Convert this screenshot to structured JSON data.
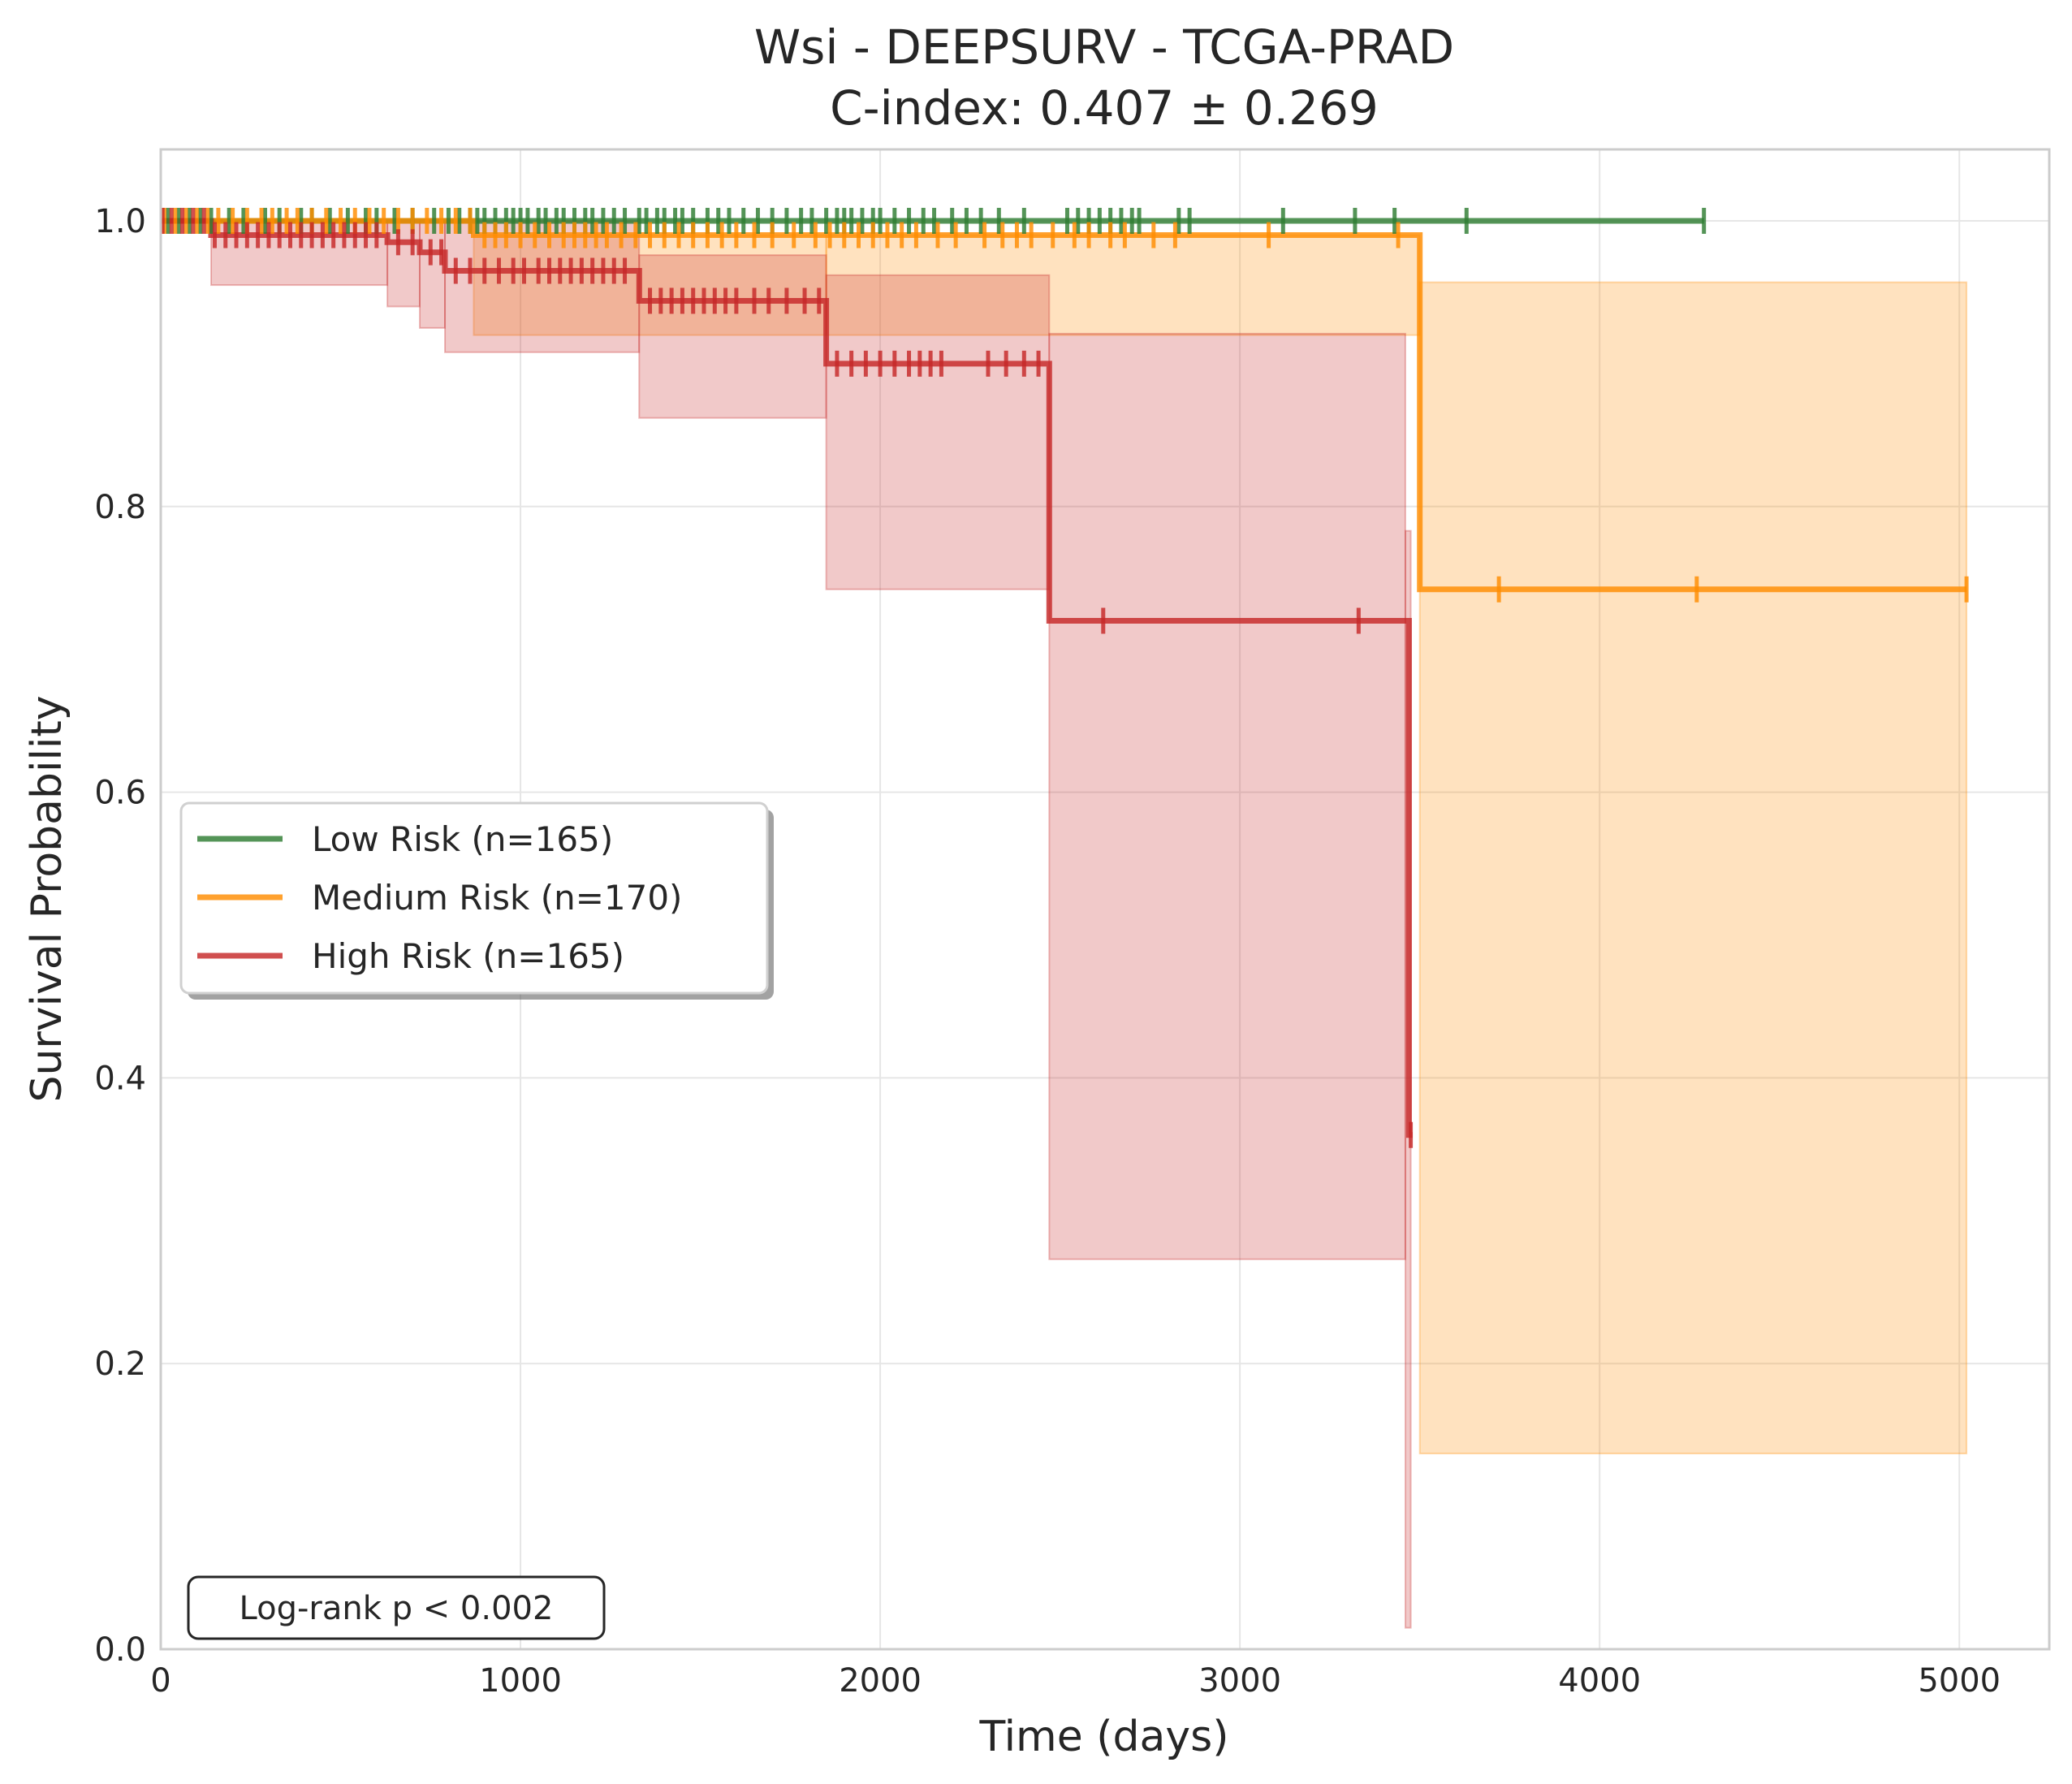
{
  "chart_data": {
    "type": "line",
    "subtype": "kaplan-meier",
    "title": "Wsi - DEEPSURV - TCGA-PRAD",
    "subtitle": "C-index: 0.407 ± 0.269",
    "xlabel": "Time (days)",
    "ylabel": "Survival Probability",
    "xlim": [
      0,
      5250
    ],
    "ylim": [
      0,
      1.05
    ],
    "xticks": [
      0,
      1000,
      2000,
      3000,
      4000,
      5000
    ],
    "yticks": [
      0.0,
      0.2,
      0.4,
      0.6,
      0.8,
      1.0
    ],
    "xtick_labels": [
      "0",
      "1000",
      "2000",
      "3000",
      "4000",
      "5000"
    ],
    "ytick_labels": [
      "0.0",
      "0.2",
      "0.4",
      "0.6",
      "0.8",
      "1.0"
    ],
    "grid": true,
    "legend_position": "center-left",
    "annotation": "Log-rank p < 0.002",
    "series": [
      {
        "name": "Low Risk (n=165)",
        "color": "#2e7d32",
        "steps": [
          [
            0,
            1.0
          ],
          [
            4290,
            1.0
          ]
        ],
        "ci": null,
        "censor_times": [
          20,
          50,
          80,
          110,
          140,
          190,
          230,
          290,
          330,
          390,
          420,
          470,
          520,
          570,
          600,
          650,
          700,
          760,
          800,
          830,
          860,
          880,
          900,
          930,
          960,
          980,
          1000,
          1020,
          1050,
          1070,
          1100,
          1120,
          1150,
          1180,
          1200,
          1230,
          1260,
          1290,
          1330,
          1350,
          1380,
          1400,
          1430,
          1450,
          1480,
          1520,
          1550,
          1580,
          1620,
          1660,
          1700,
          1740,
          1780,
          1810,
          1850,
          1880,
          1900,
          1920,
          1950,
          1980,
          2000,
          2040,
          2080,
          2120,
          2150,
          2200,
          2240,
          2280,
          2330,
          2400,
          2520,
          2550,
          2580,
          2610,
          2640,
          2670,
          2700,
          2720,
          2830,
          2860,
          3120,
          3320,
          3430,
          3630,
          4290
        ]
      },
      {
        "name": "Medium Risk (n=170)",
        "color": "#ff8c00",
        "steps": [
          [
            0,
            1.0
          ],
          [
            870,
            1.0
          ],
          [
            870,
            0.99
          ],
          [
            3500,
            0.99
          ],
          [
            3500,
            0.742
          ],
          [
            5020,
            0.742
          ]
        ],
        "ci": [
          {
            "x0": 870,
            "x1": 1850,
            "lo": 0.92,
            "hi": 0.99
          },
          {
            "x0": 1850,
            "x1": 3500,
            "lo": 0.92,
            "hi": 0.99
          },
          {
            "x0": 3500,
            "x1": 5020,
            "lo": 0.137,
            "hi": 0.957
          }
        ],
        "censor_times": [
          10,
          40,
          70,
          100,
          130,
          160,
          200,
          240,
          280,
          310,
          350,
          380,
          420,
          460,
          500,
          540,
          580,
          620,
          660,
          700,
          740,
          780,
          820,
          860,
          900,
          930,
          960,
          1000,
          1040,
          1080,
          1120,
          1150,
          1180,
          1210,
          1240,
          1280,
          1320,
          1360,
          1400,
          1440,
          1480,
          1520,
          1560,
          1600,
          1650,
          1700,
          1760,
          1820,
          1860,
          1900,
          1940,
          1980,
          2020,
          2060,
          2100,
          2160,
          2210,
          2290,
          2340,
          2380,
          2420,
          2480,
          2540,
          2580,
          2640,
          2680,
          2760,
          2820,
          3080,
          3440,
          3720,
          4270,
          5020
        ]
      },
      {
        "name": "High Risk (n=165)",
        "color": "#c62828",
        "steps": [
          [
            0,
            1.0
          ],
          [
            140,
            1.0
          ],
          [
            140,
            0.99
          ],
          [
            630,
            0.99
          ],
          [
            630,
            0.985
          ],
          [
            720,
            0.985
          ],
          [
            720,
            0.978
          ],
          [
            790,
            0.978
          ],
          [
            790,
            0.965
          ],
          [
            1330,
            0.965
          ],
          [
            1330,
            0.944
          ],
          [
            1850,
            0.944
          ],
          [
            1850,
            0.9
          ],
          [
            2470,
            0.9
          ],
          [
            2470,
            0.72
          ],
          [
            3470,
            0.72
          ],
          [
            3470,
            0.36
          ],
          [
            3480,
            0.36
          ]
        ],
        "ci": [
          {
            "x0": 140,
            "x1": 630,
            "lo": 0.955,
            "hi": 1.0
          },
          {
            "x0": 630,
            "x1": 720,
            "lo": 0.94,
            "hi": 1.0
          },
          {
            "x0": 720,
            "x1": 790,
            "lo": 0.925,
            "hi": 1.0
          },
          {
            "x0": 790,
            "x1": 1330,
            "lo": 0.908,
            "hi": 1.0
          },
          {
            "x0": 1330,
            "x1": 1850,
            "lo": 0.862,
            "hi": 0.976
          },
          {
            "x0": 1850,
            "x1": 2470,
            "lo": 0.742,
            "hi": 0.962
          },
          {
            "x0": 2470,
            "x1": 3460,
            "lo": 0.273,
            "hi": 0.921
          },
          {
            "x0": 3460,
            "x1": 3475,
            "lo": 0.015,
            "hi": 0.783
          }
        ],
        "censor_times": [
          5,
          30,
          60,
          90,
          120,
          150,
          180,
          210,
          240,
          270,
          300,
          330,
          360,
          390,
          420,
          450,
          480,
          510,
          540,
          570,
          600,
          660,
          700,
          750,
          780,
          820,
          860,
          900,
          940,
          980,
          1010,
          1050,
          1080,
          1110,
          1140,
          1170,
          1200,
          1230,
          1260,
          1290,
          1360,
          1390,
          1420,
          1450,
          1480,
          1510,
          1540,
          1570,
          1600,
          1650,
          1690,
          1740,
          1790,
          1830,
          1880,
          1920,
          1960,
          2000,
          2040,
          2080,
          2110,
          2140,
          2170,
          2300,
          2350,
          2400,
          2440,
          2620,
          3330,
          3475
        ]
      }
    ]
  }
}
